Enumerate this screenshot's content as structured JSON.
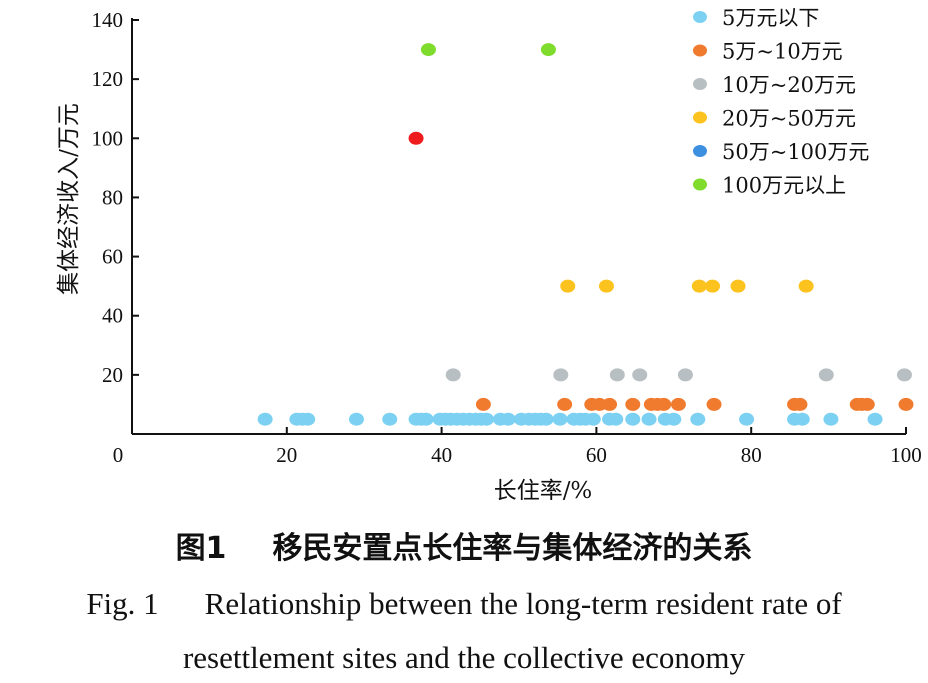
{
  "chart_data": {
    "type": "scatter",
    "xlabel": "长住率/%",
    "ylabel": "集体经济收入/万元",
    "xlim": [
      0,
      100
    ],
    "ylim": [
      0,
      140
    ],
    "xticks": [
      0,
      20,
      40,
      60,
      80,
      100
    ],
    "yticks": [
      20,
      40,
      60,
      80,
      100,
      120,
      140
    ],
    "legend_position": "top-right",
    "grid": false,
    "series": [
      {
        "name": "5万元以下",
        "color": "#7cd1f2",
        "points": [
          [
            17.2,
            5
          ],
          [
            21.3,
            5
          ],
          [
            22.0,
            5
          ],
          [
            22.7,
            5
          ],
          [
            29.0,
            5
          ],
          [
            33.3,
            5
          ],
          [
            36.7,
            5
          ],
          [
            37.4,
            5
          ],
          [
            38.0,
            5
          ],
          [
            39.8,
            5
          ],
          [
            40.5,
            5
          ],
          [
            41.2,
            5
          ],
          [
            42.0,
            5
          ],
          [
            42.8,
            5
          ],
          [
            43.6,
            5
          ],
          [
            44.4,
            5
          ],
          [
            45.1,
            5
          ],
          [
            45.8,
            5
          ],
          [
            47.6,
            5
          ],
          [
            48.6,
            5
          ],
          [
            50.3,
            5
          ],
          [
            51.3,
            5
          ],
          [
            52.1,
            5
          ],
          [
            52.8,
            5
          ],
          [
            53.5,
            5
          ],
          [
            55.3,
            5
          ],
          [
            57.1,
            5
          ],
          [
            57.9,
            5
          ],
          [
            58.6,
            5
          ],
          [
            59.6,
            5
          ],
          [
            61.7,
            5
          ],
          [
            62.5,
            5
          ],
          [
            64.7,
            5
          ],
          [
            66.8,
            5
          ],
          [
            68.9,
            5
          ],
          [
            70.0,
            5
          ],
          [
            73.1,
            5
          ],
          [
            79.4,
            5
          ],
          [
            85.6,
            5
          ],
          [
            86.6,
            5
          ],
          [
            90.3,
            5
          ],
          [
            96.0,
            5
          ]
        ]
      },
      {
        "name": "5万~10万元",
        "color": "#f07a2e",
        "points": [
          [
            45.4,
            10
          ],
          [
            55.9,
            10
          ],
          [
            59.4,
            10
          ],
          [
            60.4,
            10
          ],
          [
            61.7,
            10
          ],
          [
            64.7,
            10
          ],
          [
            67.1,
            10
          ],
          [
            67.9,
            10
          ],
          [
            68.7,
            10
          ],
          [
            70.6,
            10
          ],
          [
            75.2,
            10
          ],
          [
            85.6,
            10
          ],
          [
            86.3,
            10
          ],
          [
            93.7,
            10
          ],
          [
            94.3,
            10
          ],
          [
            95.0,
            10
          ],
          [
            100.0,
            10
          ]
        ]
      },
      {
        "name": "10万~20万元",
        "color": "#b7bfc3",
        "points": [
          [
            41.5,
            20
          ],
          [
            55.4,
            20
          ],
          [
            62.7,
            20
          ],
          [
            65.6,
            20
          ],
          [
            71.5,
            20
          ],
          [
            89.7,
            20
          ],
          [
            99.8,
            20
          ]
        ]
      },
      {
        "name": "20万~50万元",
        "color": "#fcc31e",
        "points": [
          [
            56.3,
            50
          ],
          [
            61.3,
            50
          ],
          [
            73.3,
            50
          ],
          [
            75.0,
            50
          ],
          [
            78.3,
            50
          ],
          [
            87.1,
            50
          ]
        ]
      },
      {
        "name": "50万~100万元",
        "color": "#3d8fe0",
        "points": []
      },
      {
        "name": "100万元以上",
        "color": "#7fdc2c",
        "points": [
          [
            38.3,
            130
          ],
          [
            53.8,
            130
          ]
        ]
      },
      {
        "name": "",
        "color": "#ee1c1c",
        "points": [
          [
            36.7,
            100
          ]
        ]
      }
    ]
  },
  "caption": {
    "cn_label": "图1",
    "cn_title": "移民安置点长住率与集体经济的关系",
    "en_label": "Fig. 1",
    "en_title_line1": "Relationship between the long-term resident rate of",
    "en_title_line2": "resettlement sites and the collective economy"
  }
}
